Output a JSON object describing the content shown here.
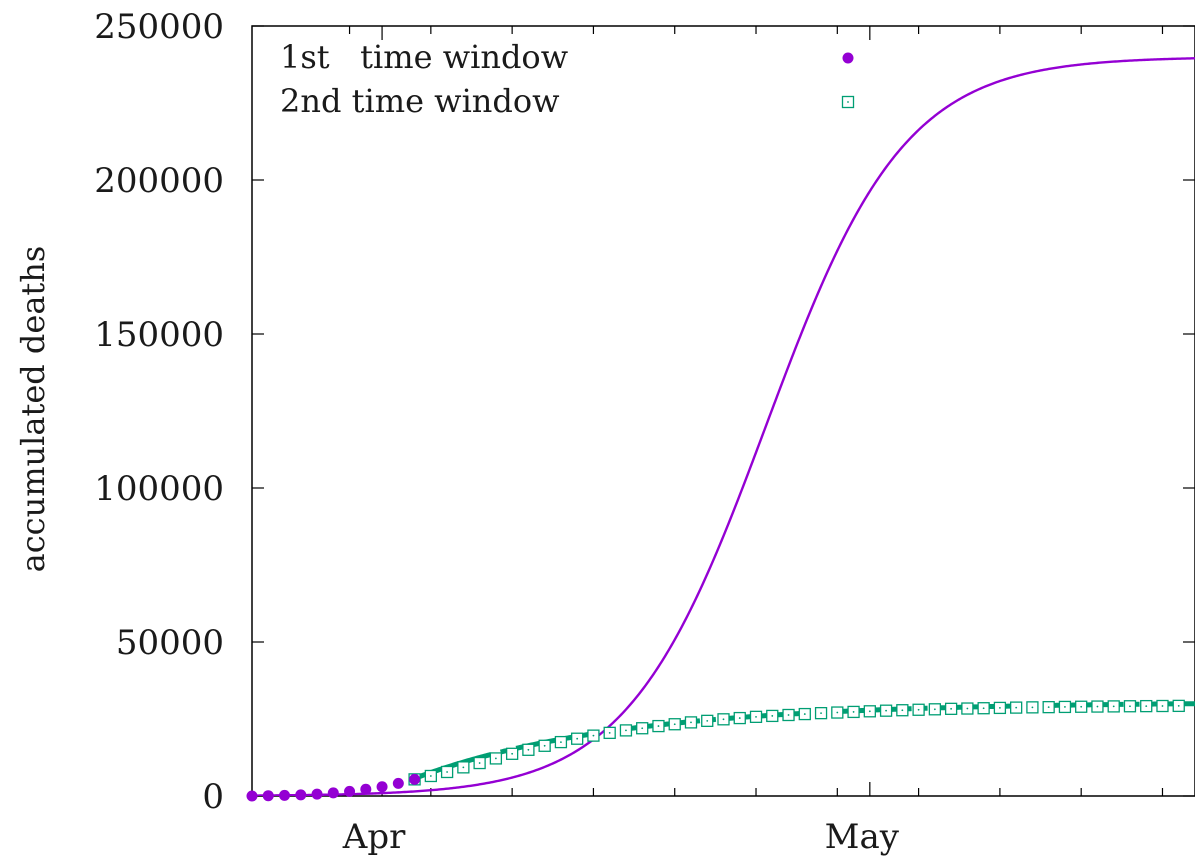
{
  "chart_data": {
    "type": "line",
    "title": "",
    "xlabel": "",
    "ylabel": "accumulated deaths",
    "x_tick_labels": [
      {
        "label": "Apr",
        "day": 7
      },
      {
        "label": "May",
        "day": 37
      }
    ],
    "x_minor_tick_days": [
      5,
      10,
      15,
      20,
      25,
      30,
      35,
      40,
      45,
      50,
      55
    ],
    "xlim_days": [
      -1,
      57
    ],
    "ylim": [
      0,
      250000
    ],
    "y_ticks": [
      0,
      50000,
      100000,
      150000,
      200000,
      250000
    ],
    "legend": {
      "position": "top-left",
      "entries": [
        {
          "label": "1st   time window",
          "marker": "filled-circle"
        },
        {
          "label": "2nd time window",
          "marker": "open-square-dot"
        }
      ]
    },
    "colors": {
      "first": "#9400d3",
      "second": "#009e73",
      "axis": "#000000"
    },
    "series": [
      {
        "name": "1st   time window",
        "style": "points",
        "x": [
          -1,
          0,
          1,
          2,
          3,
          4,
          5,
          6,
          7,
          8,
          9
        ],
        "y": [
          0,
          100,
          200,
          350,
          600,
          1000,
          1500,
          2200,
          3000,
          4100,
          5400
        ]
      },
      {
        "name": "2nd time window",
        "style": "points",
        "x": [
          9,
          10,
          11,
          12,
          13,
          14,
          15,
          16,
          17,
          18,
          19,
          20,
          21,
          22,
          23,
          24,
          25,
          26,
          27,
          28,
          29,
          30,
          31,
          32,
          33,
          34,
          35,
          36,
          37,
          38,
          39,
          40,
          41,
          42,
          43,
          44,
          45,
          46,
          47,
          48,
          49,
          50,
          51,
          52,
          53,
          54,
          55,
          56
        ],
        "y": [
          5400,
          6500,
          7800,
          9300,
          10700,
          12200,
          13700,
          15000,
          16300,
          17500,
          18600,
          19600,
          20500,
          21300,
          22000,
          22700,
          23300,
          23900,
          24400,
          24900,
          25300,
          25700,
          26000,
          26300,
          26600,
          26900,
          27100,
          27300,
          27500,
          27700,
          27850,
          28000,
          28150,
          28300,
          28400,
          28500,
          28600,
          28700,
          28780,
          28850,
          28920,
          28980,
          29040,
          29090,
          29140,
          29180,
          29220,
          29260
        ]
      },
      {
        "name": "",
        "style": "fit-line",
        "model": "logistic",
        "params": {
          "K": 240000,
          "midpoint_day": 30.6,
          "rate": 0.235
        },
        "x_range": [
          -1,
          57
        ]
      },
      {
        "name": "",
        "style": "fit-line-dashed",
        "model": "saturating",
        "params": {
          "A": 30500,
          "day0": 8.5,
          "tau": 12.5,
          "y0": 4700
        },
        "x_range": [
          9,
          57
        ]
      }
    ]
  }
}
